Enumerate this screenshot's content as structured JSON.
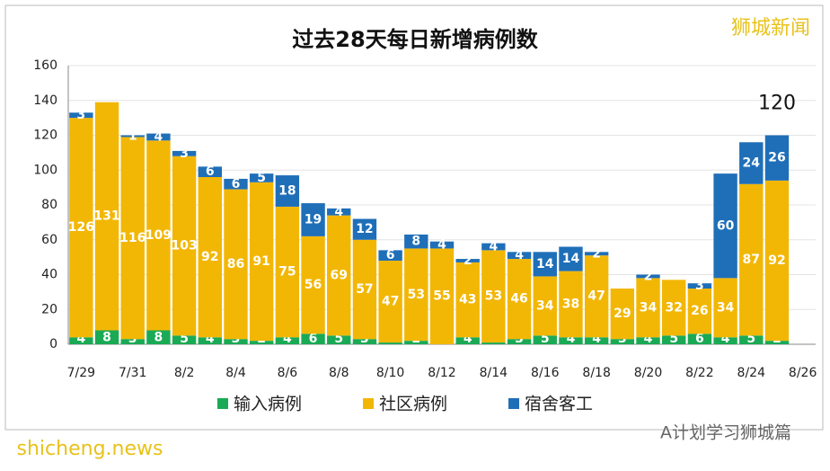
{
  "chart_data": {
    "type": "stacked_bar",
    "title": "过去28天每日新增病例数",
    "categories": [
      "7/29",
      null,
      "7/31",
      null,
      "8/2",
      null,
      "8/4",
      null,
      "8/6",
      null,
      "8/8",
      null,
      "8/10",
      null,
      "8/12",
      null,
      "8/14",
      null,
      "8/16",
      null,
      "8/18",
      null,
      "8/20",
      null,
      "8/22",
      null,
      "8/24",
      null,
      "8/26"
    ],
    "series": [
      {
        "name": "输入病例",
        "color": "#1aaa55",
        "values": [
          4,
          8,
          3,
          8,
          5,
          4,
          3,
          2,
          4,
          6,
          5,
          3,
          1,
          2,
          0,
          4,
          1,
          3,
          5,
          4,
          4,
          3,
          4,
          5,
          6,
          4,
          5,
          2,
          null
        ]
      },
      {
        "name": "社区病例",
        "color": "#f2b705",
        "values": [
          126,
          131,
          116,
          109,
          103,
          92,
          86,
          91,
          75,
          56,
          69,
          57,
          47,
          53,
          55,
          43,
          53,
          46,
          34,
          38,
          47,
          29,
          34,
          32,
          26,
          34,
          87,
          92,
          null
        ]
      },
      {
        "name": "宿舍客工",
        "color": "#1f6fb8",
        "values": [
          3,
          0,
          1,
          4,
          3,
          6,
          6,
          5,
          18,
          19,
          4,
          12,
          6,
          8,
          4,
          2,
          4,
          4,
          14,
          14,
          2,
          0,
          2,
          0,
          3,
          60,
          24,
          26,
          null
        ]
      }
    ],
    "annotation": {
      "text": "120",
      "value": 120
    },
    "ylim": [
      0,
      160
    ],
    "yticks": [
      0,
      20,
      40,
      60,
      80,
      100,
      120,
      140,
      160
    ],
    "grid": true,
    "watermarks": [
      "狮城新闻",
      "A计划学习狮城篇",
      "shicheng.news"
    ]
  }
}
